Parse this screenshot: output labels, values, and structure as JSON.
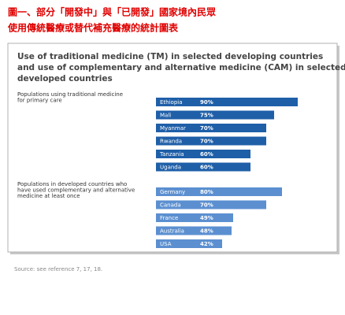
{
  "figure_title": [
    "圖一、部分「開發中」與「已開發」國家境內民眾",
    "使用傳統醫療或替代補充醫療的統計圖表"
  ],
  "panel_title": [
    "Use of traditional medicine (TM) in selected developing countries",
    "and use of complementary and alternative medicine (CAM) in selected",
    "developed countries"
  ],
  "chart_data": [
    {
      "type": "bar",
      "orientation": "horizontal",
      "title": [
        "Populations using traditional medicine",
        "for primary care"
      ],
      "categories": [
        "Ethiopia",
        "Mali",
        "Myanmar",
        "Rwanda",
        "Tanzania",
        "Uganda"
      ],
      "values": [
        90,
        75,
        70,
        70,
        60,
        60
      ],
      "value_labels": [
        "90%",
        "75%",
        "70%",
        "70%",
        "60%",
        "60%"
      ],
      "color": "#1f5fa8"
    },
    {
      "type": "bar",
      "orientation": "horizontal",
      "title": [
        "Populations in developed countries who",
        "have used complementary and alternative",
        "medicine at least once"
      ],
      "categories": [
        "Germany",
        "Canada",
        "France",
        "Australia",
        "USA"
      ],
      "values": [
        80,
        70,
        49,
        48,
        42
      ],
      "value_labels": [
        "80%",
        "70%",
        "49%",
        "48%",
        "42%"
      ],
      "color": "#5b8fd0"
    }
  ],
  "source": "Source: see reference 7, 17, 18."
}
